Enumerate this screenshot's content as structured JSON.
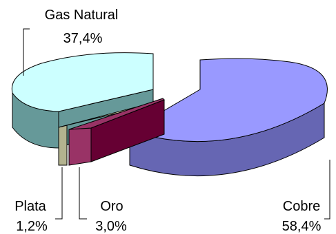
{
  "chart_data": {
    "type": "pie",
    "style": "3d-exploded",
    "slices": [
      {
        "name": "Gas Natural",
        "value": 37.4,
        "label": "37,4%",
        "color": "#ccffff",
        "side_color": "#669999"
      },
      {
        "name": "Plata",
        "value": 1.2,
        "label": "1,2%",
        "color": "#ffffcc",
        "side_color": "#b3b38f"
      },
      {
        "name": "Oro",
        "value": 3.0,
        "label": "3,0%",
        "color": "#993366",
        "side_color": "#660033"
      },
      {
        "name": "Cobre",
        "value": 58.4,
        "label": "58,4%",
        "color": "#9999ff",
        "side_color": "#6666b3"
      }
    ]
  }
}
